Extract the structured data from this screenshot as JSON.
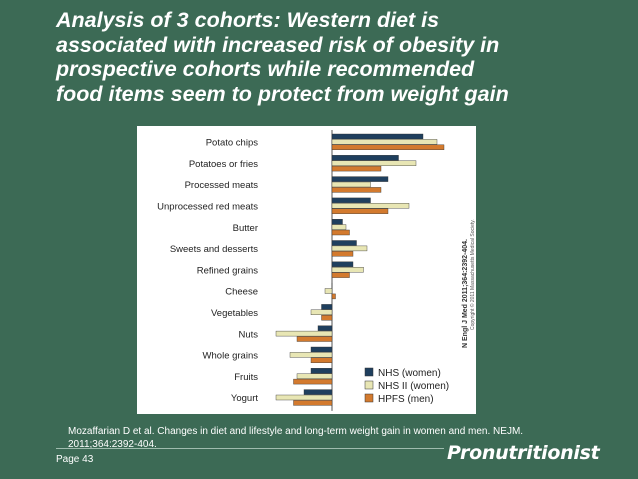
{
  "slide": {
    "title": "Analysis of 3 cohorts: Western diet is\nassociated with increased risk of  obesity in\nprospective cohorts while recommended\nfood items seem to protect from weight gain",
    "citation": "Mozaffarian D et al. Changes in diet and lifestyle and long-term weight gain in women and men. NEJM. 2011;364:2392-404.",
    "page_label": "Page 43",
    "logo_text": "Pronutritionist"
  },
  "chart_data": {
    "type": "bar",
    "orientation": "horizontal",
    "categories": [
      "Potato chips",
      "Potatoes or fries",
      "Processed meats",
      "Unprocessed red meats",
      "Butter",
      "Sweets and desserts",
      "Refined grains",
      "Cheese",
      "Vegetables",
      "Nuts",
      "Whole grains",
      "Fruits",
      "Yogurt"
    ],
    "series": [
      {
        "name": "NHS (women)",
        "color": "#1f3f5e",
        "values": [
          1.3,
          0.95,
          0.8,
          0.55,
          0.15,
          0.35,
          0.3,
          0.0,
          -0.15,
          -0.2,
          -0.3,
          -0.3,
          -0.4
        ]
      },
      {
        "name": "NHS II (women)",
        "color": "#e8e6b4",
        "values": [
          1.5,
          1.2,
          0.55,
          1.1,
          0.2,
          0.5,
          0.45,
          -0.1,
          -0.3,
          -0.8,
          -0.6,
          -0.5,
          -0.8
        ]
      },
      {
        "name": "HPFS (men)",
        "color": "#d37a2e",
        "values": [
          1.6,
          0.7,
          0.7,
          0.8,
          0.25,
          0.3,
          0.25,
          0.05,
          -0.15,
          -0.5,
          -0.3,
          -0.55,
          -0.55
        ]
      }
    ],
    "xlim": [
      -1.0,
      1.7
    ],
    "title": "",
    "xlabel": "",
    "ylabel": "",
    "grid": false,
    "legend_position": "bottom-right",
    "side_note": "N Engl J Med 2011;364:2392-404.",
    "copyright": "Copyright © 2011 Massachusetts Medical Society."
  }
}
